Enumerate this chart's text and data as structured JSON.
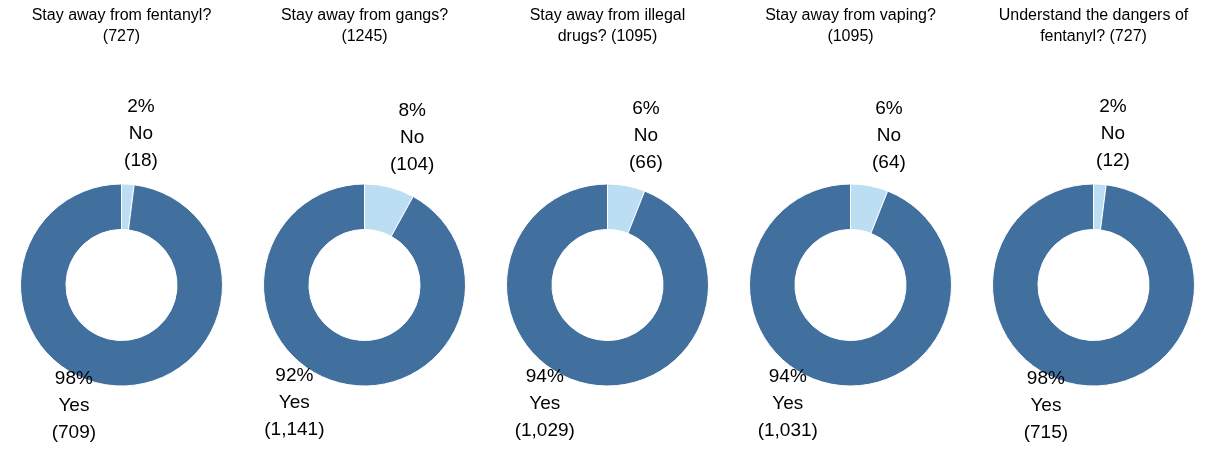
{
  "chart_data": [
    {
      "type": "donut",
      "title": "Stay away from fentanyl? (727)",
      "categories": [
        "No",
        "Yes"
      ],
      "values": [
        2,
        98
      ],
      "colors": [
        "#bbdef2",
        "#41709f"
      ],
      "value_labels": [
        "2%\n(18)",
        "98%\n(709)"
      ],
      "legend": false
    },
    {
      "type": "donut",
      "title": "Stay away from gangs? (1245)",
      "categories": [
        "No",
        "Yes"
      ],
      "values": [
        8,
        92
      ],
      "colors": [
        "#bbdef2",
        "#41709f"
      ],
      "value_labels": [
        "8%\n(104)",
        "92%\n(1,141)"
      ],
      "legend": false
    },
    {
      "type": "donut",
      "title": "Stay away from illegal drugs? (1095)",
      "categories": [
        "No",
        "Yes"
      ],
      "values": [
        6,
        94
      ],
      "colors": [
        "#bbdef2",
        "#41709f"
      ],
      "value_labels": [
        "6%\n(66)",
        "94%\n(1,029)"
      ],
      "legend": false
    },
    {
      "type": "donut",
      "title": "Stay away from vaping? (1095)",
      "categories": [
        "No",
        "Yes"
      ],
      "values": [
        6,
        94
      ],
      "colors": [
        "#bbdef2",
        "#41709f"
      ],
      "value_labels": [
        "6%\n(64)",
        "94%\n(1,031)"
      ],
      "legend": false
    },
    {
      "type": "donut",
      "title": "Understand the dangers of fentanyl? (727)",
      "categories": [
        "No",
        "Yes"
      ],
      "values": [
        2,
        98
      ],
      "colors": [
        "#bbdef2",
        "#41709f"
      ],
      "value_labels": [
        "2%\n(12)",
        "98%\n(715)"
      ],
      "legend": false
    }
  ]
}
